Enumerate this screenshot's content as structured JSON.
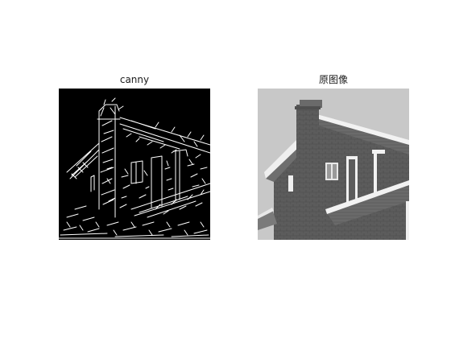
{
  "panels": [
    {
      "title": "canny",
      "content": "edge-map-image"
    },
    {
      "title": "原图像",
      "content": "grayscale-house-photo"
    }
  ],
  "colors": {
    "background": "#ffffff",
    "edge_map_bg": "#000000",
    "edge_lines": "#ffffff",
    "sky": "#c8c8c8",
    "brick": "#5a5a5a",
    "trim": "#f2f2f2"
  }
}
